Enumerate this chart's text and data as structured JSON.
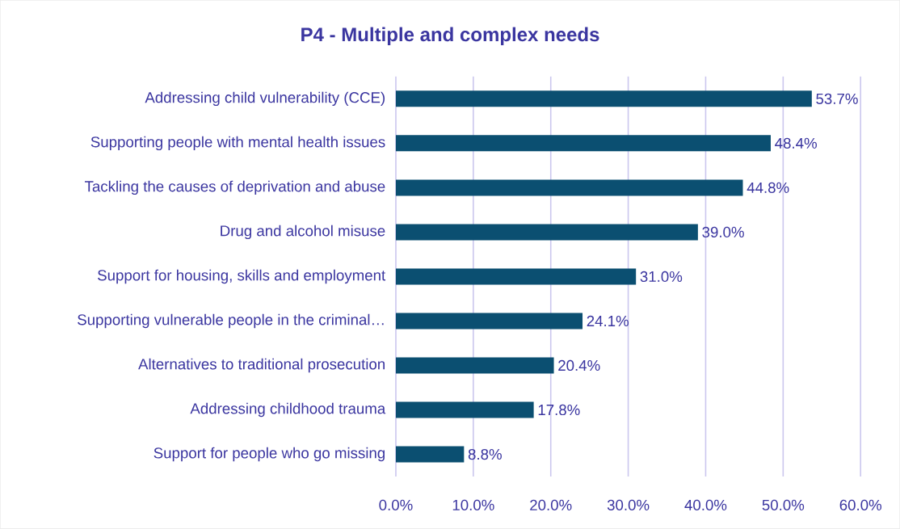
{
  "chart_data": {
    "type": "bar",
    "orientation": "horizontal",
    "title": "P4 - Multiple and complex needs",
    "categories": [
      "Addressing child vulnerability (CCE)",
      "Supporting people with mental health issues",
      "Tackling the causes of deprivation and abuse",
      "Drug and alcohol misuse",
      "Support for housing, skills and employment",
      "Supporting vulnerable people in the criminal…",
      "Alternatives to traditional prosecution",
      "Addressing childhood trauma",
      "Support for people who go missing"
    ],
    "values": [
      53.7,
      48.4,
      44.8,
      39.0,
      31.0,
      24.1,
      20.4,
      17.8,
      8.8
    ],
    "value_labels": [
      "53.7%",
      "48.4%",
      "44.8%",
      "39.0%",
      "31.0%",
      "24.1%",
      "20.4%",
      "17.8%",
      "8.8%"
    ],
    "color": "#0b4f71",
    "xlim": [
      0,
      60
    ],
    "xticks": [
      {
        "value": 0,
        "label": "0.0%"
      },
      {
        "value": 10,
        "label": "10.0%"
      },
      {
        "value": 20,
        "label": "20.0%"
      },
      {
        "value": 30,
        "label": "30.0%"
      },
      {
        "value": 40,
        "label": "40.0%"
      },
      {
        "value": 50,
        "label": "50.0%"
      },
      {
        "value": 60,
        "label": "60.0%"
      }
    ],
    "grid": "x"
  }
}
